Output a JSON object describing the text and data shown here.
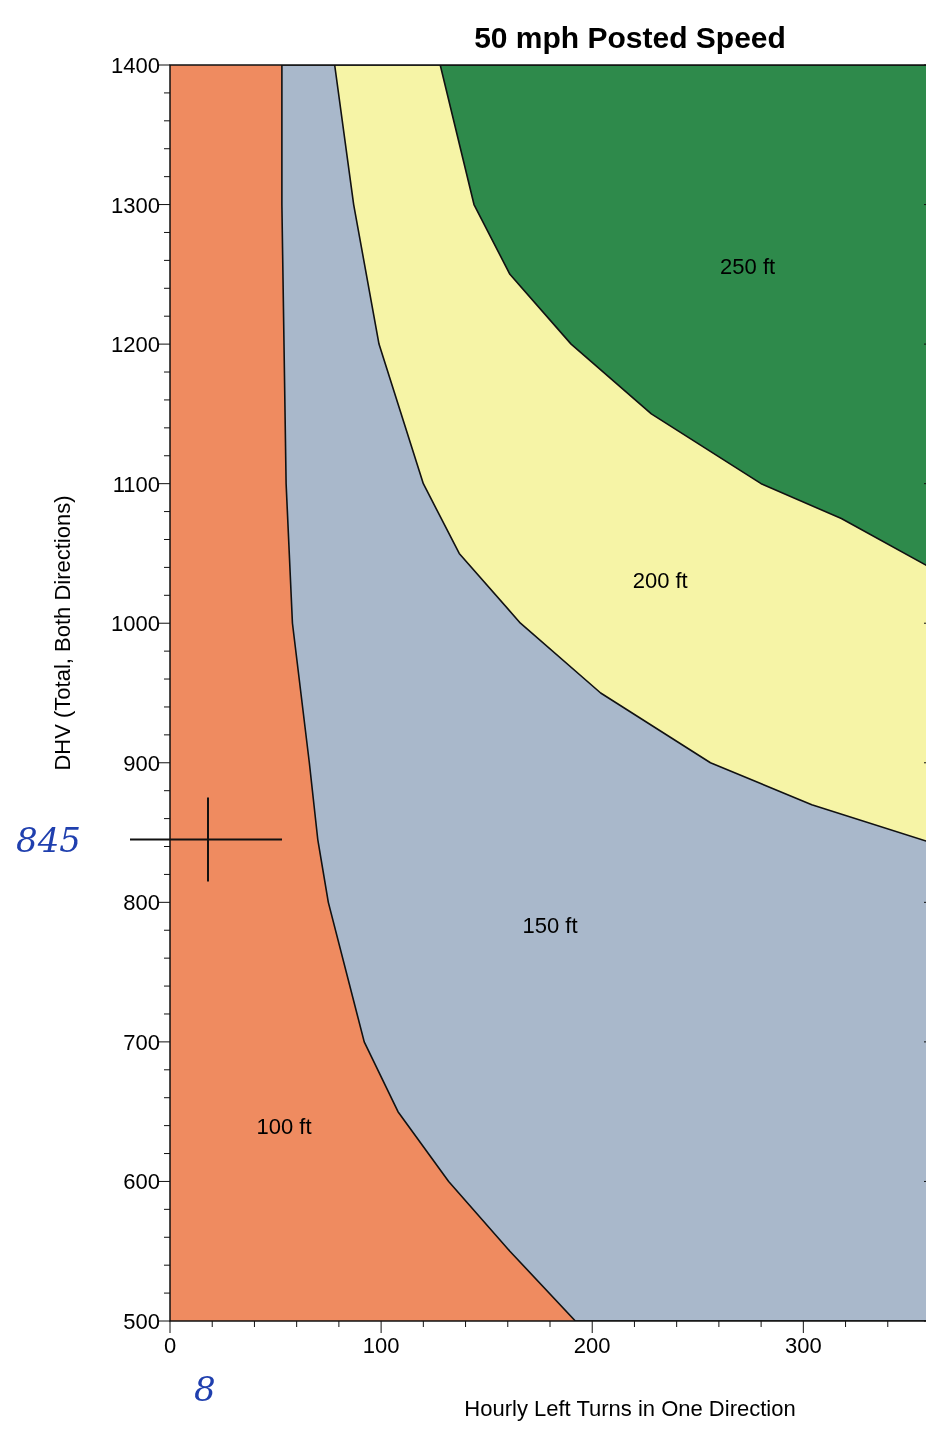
{
  "chart_data": {
    "type": "area",
    "title": "50 mph Posted Speed",
    "xlabel": "Hourly Left Turns in One Direction",
    "ylabel": "DHV (Total, Both Directions)",
    "xlim": [
      0,
      360
    ],
    "ylim": [
      500,
      1400
    ],
    "xticks": [
      0,
      {
        "value": 20,
        "label": null
      },
      {
        "value": 40,
        "label": null
      },
      {
        "value": 60,
        "label": null
      },
      {
        "value": 80,
        "label": null
      },
      100,
      {
        "value": 120,
        "label": null
      },
      {
        "value": 140,
        "label": null
      },
      {
        "value": 160,
        "label": null
      },
      {
        "value": 180,
        "label": null
      },
      200,
      {
        "value": 220,
        "label": null
      },
      {
        "value": 240,
        "label": null
      },
      {
        "value": 260,
        "label": null
      },
      {
        "value": 280,
        "label": null
      },
      300,
      {
        "value": 320,
        "label": null
      },
      {
        "value": 340,
        "label": null
      },
      {
        "value": 360,
        "label": null
      }
    ],
    "yticks": [
      500,
      {
        "value": 520,
        "label": null
      },
      {
        "value": 540,
        "label": null
      },
      {
        "value": 560,
        "label": null
      },
      {
        "value": 580,
        "label": null
      },
      600,
      {
        "value": 620,
        "label": null
      },
      {
        "value": 640,
        "label": null
      },
      {
        "value": 660,
        "label": null
      },
      {
        "value": 680,
        "label": null
      },
      700,
      {
        "value": 720,
        "label": null
      },
      {
        "value": 740,
        "label": null
      },
      {
        "value": 760,
        "label": null
      },
      {
        "value": 780,
        "label": null
      },
      800,
      {
        "value": 820,
        "label": null
      },
      {
        "value": 840,
        "label": null
      },
      {
        "value": 860,
        "label": null
      },
      {
        "value": 880,
        "label": null
      },
      900,
      {
        "value": 920,
        "label": null
      },
      {
        "value": 940,
        "label": null
      },
      {
        "value": 960,
        "label": null
      },
      {
        "value": 980,
        "label": null
      },
      1000,
      {
        "value": 1020,
        "label": null
      },
      {
        "value": 1040,
        "label": null
      },
      {
        "value": 1060,
        "label": null
      },
      {
        "value": 1080,
        "label": null
      },
      1100,
      {
        "value": 1120,
        "label": null
      },
      {
        "value": 1140,
        "label": null
      },
      {
        "value": 1160,
        "label": null
      },
      {
        "value": 1180,
        "label": null
      },
      1200,
      {
        "value": 1220,
        "label": null
      },
      {
        "value": 1240,
        "label": null
      },
      {
        "value": 1260,
        "label": null
      },
      {
        "value": 1280,
        "label": null
      },
      1300,
      {
        "value": 1320,
        "label": null
      },
      {
        "value": 1340,
        "label": null
      },
      {
        "value": 1360,
        "label": null
      },
      {
        "value": 1380,
        "label": null
      },
      1400
    ],
    "bands": [
      {
        "axis": "x",
        "from": 0,
        "to": 360,
        "color": "#ef8b60",
        "label": "100 ft"
      }
    ],
    "series": [
      {
        "name": "150 ft",
        "color": "#a9b8cb",
        "x": [
          53,
          53,
          55,
          58,
          66,
          70,
          75,
          92,
          108,
          132,
          161,
          192,
          360,
          360
        ],
        "values": [
          1400,
          1300,
          1100,
          1000,
          900,
          845,
          800,
          700,
          650,
          600,
          550,
          500,
          500,
          1400
        ]
      },
      {
        "name": "200 ft",
        "color": "#f6f4a6",
        "x": [
          78,
          87,
          99,
          120,
          137,
          166,
          204,
          256,
          304,
          360,
          360
        ],
        "values": [
          1400,
          1300,
          1200,
          1100,
          1050,
          1000,
          950,
          900,
          870,
          843,
          1400
        ]
      },
      {
        "name": "250 ft",
        "color": "#2e8a4b",
        "x": [
          128,
          144,
          161,
          190,
          228,
          280,
          318,
          360,
          360
        ],
        "values": [
          1400,
          1300,
          1250,
          1200,
          1150,
          1100,
          1075,
          1040,
          1400
        ]
      }
    ],
    "annotations": [
      "845",
      "8"
    ]
  }
}
